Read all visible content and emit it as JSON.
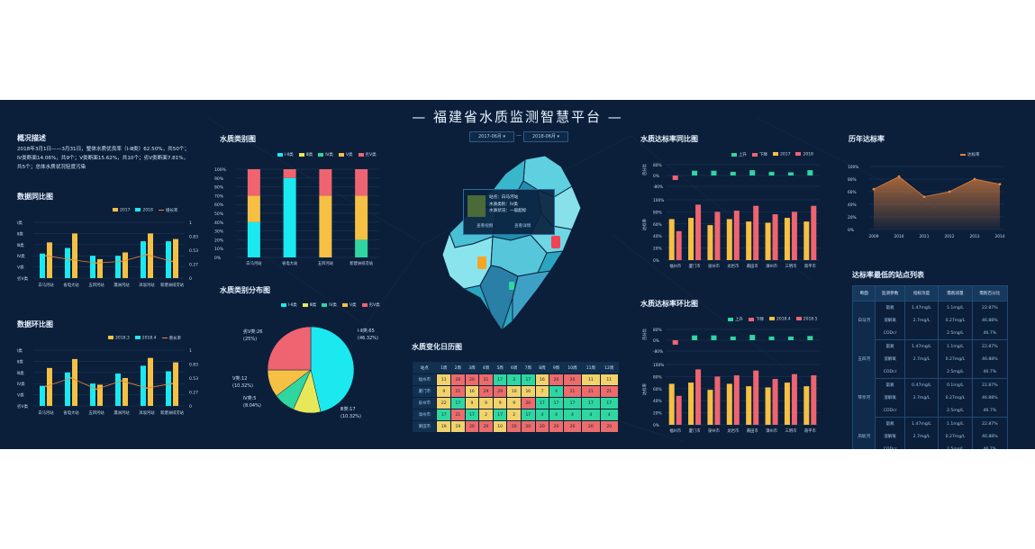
{
  "header": {
    "title": "— 福建省水质监测智慧平台 —"
  },
  "date_range": {
    "start": "2017-06月 ▾",
    "sep": "—",
    "end": "2018-06月 ▾"
  },
  "overview": {
    "title": "概况描述",
    "text": "2018年3月1日——3月31日，整体水质优良率（Ⅰ-Ⅲ类）62.50%，共50个；Ⅳ类断面14.06%，共9个；Ⅴ类断面15.62%，共10个；劣Ⅴ类断面7.81%，共5个；总体水质状况轻度污染"
  },
  "yoy": {
    "title": "数据同比图",
    "legend": [
      "2017",
      "2018",
      "增长率"
    ],
    "left_ticks": [
      "Ⅰ类",
      "Ⅱ类",
      "Ⅲ类",
      "Ⅳ类",
      "Ⅴ类",
      "劣Ⅴ类"
    ],
    "right_ticks": [
      "1",
      "0.83",
      "0.53",
      "0.27",
      "0"
    ],
    "stations": [
      "白马河站",
      "省电大站",
      "五四河站",
      "瀛洲河站",
      "凤坂河站",
      "新建洲排涝站"
    ]
  },
  "mom": {
    "title": "数据环比图",
    "legend": [
      "2018.3",
      "2018.4",
      "增长率"
    ],
    "left_ticks": [
      "Ⅰ类",
      "Ⅱ类",
      "Ⅲ类",
      "Ⅳ类",
      "Ⅴ类",
      "劣Ⅴ类"
    ],
    "right_ticks": [
      "1",
      "0.83",
      "0.53",
      "0.27",
      "0"
    ],
    "stations": [
      "白马河站",
      "省电大站",
      "五四河站",
      "瀛洲河站",
      "凤坂河站",
      "新建洲排涝站"
    ]
  },
  "category": {
    "title": "水质类别图",
    "legend": [
      "Ⅰ-Ⅱ类",
      "Ⅲ类",
      "Ⅳ类",
      "Ⅴ类",
      "劣Ⅴ类"
    ],
    "y_ticks": [
      "100%",
      "90%",
      "80%",
      "70%",
      "60%",
      "50%",
      "40%",
      "30%",
      "20%",
      "10%",
      "0%"
    ],
    "stations": [
      "白马河站",
      "省电大站",
      "五四河站",
      "新建洲排涝站"
    ]
  },
  "distribution": {
    "title": "水质类别分布图",
    "legend": [
      "Ⅰ-Ⅱ类",
      "Ⅲ类",
      "Ⅳ类",
      "Ⅴ类",
      "劣Ⅴ类"
    ],
    "labels": [
      {
        "name": "Ⅰ-Ⅱ类:65",
        "pct": "(46.32%)"
      },
      {
        "name": "Ⅲ类:17",
        "pct": "(10.32%)"
      },
      {
        "name": "Ⅳ类:5",
        "pct": "(8.04%)"
      },
      {
        "name": "Ⅴ类:12",
        "pct": "(10.32%)"
      },
      {
        "name": "劣Ⅴ类:26",
        "pct": "(25%)"
      }
    ]
  },
  "map_tooltip": {
    "lines": [
      "站点：白马河站",
      "水质类别：Ⅳ类",
      "水质状况：一般超标"
    ],
    "btn1": "查看视频",
    "btn2": "查看详情"
  },
  "calendar": {
    "title": "水质变化日历图",
    "header": [
      "站点",
      "1周",
      "2周",
      "3周",
      "4周",
      "5周",
      "6周",
      "7周",
      "8周",
      "9周",
      "10周",
      "11周",
      "12周"
    ],
    "rows": [
      {
        "city": "福州市",
        "cells": [
          "11",
          "20",
          "20",
          "21",
          "17",
          "3",
          "17",
          "16",
          "20",
          "20",
          "11",
          "11"
        ]
      },
      {
        "city": "厦门市",
        "cells": [
          "9",
          "21",
          "16",
          "29",
          "29",
          "10",
          "16",
          "7",
          "4",
          "21",
          "21",
          "21"
        ]
      },
      {
        "city": "泉州市",
        "cells": [
          "22",
          "17",
          "9",
          "9",
          "9",
          "9",
          "20",
          "17",
          "17",
          "17",
          "17",
          "17"
        ]
      },
      {
        "city": "漳州市",
        "cells": [
          "17",
          "21",
          "17",
          "2",
          "17",
          "2",
          "17",
          "4",
          "4",
          "4",
          "4",
          "4"
        ]
      },
      {
        "city": "莆田市",
        "cells": [
          "19",
          "19",
          "20",
          "20",
          "10",
          "20",
          "20",
          "20",
          "20",
          "20",
          "20",
          "20"
        ]
      }
    ],
    "colors": [
      "#f2d26b",
      "#ec6b6b",
      "#f2d26b",
      "#ec6b6b",
      "#f2d26b",
      "#2fd6a0",
      "#f2d26b",
      "#f2d26b",
      "#ec6b6b",
      "#ec6b6b",
      "#f2d26b",
      "#f2d26b"
    ]
  },
  "yoy_rate": {
    "title": "水质达标率同比图",
    "legend": [
      "上升",
      "下降",
      "2017",
      "2018"
    ],
    "top_axis": "百分比",
    "top_ticks": [
      "80%",
      "0%",
      "-80%"
    ],
    "bottom_axis": "达标率",
    "bottom_ticks": [
      "100%",
      "80%",
      "60%",
      "40%",
      "20%",
      "0%"
    ],
    "cities": [
      "福州市",
      "厦门市",
      "泉州市",
      "龙岩市",
      "莆田市",
      "漳州市",
      "三明市",
      "南平市"
    ]
  },
  "mom_rate": {
    "title": "水质达标率环比图",
    "legend": [
      "上升",
      "下降",
      "2018.4",
      "2018.5"
    ],
    "top_axis": "百分比",
    "top_ticks": [
      "80%",
      "0%",
      "-80%"
    ],
    "bottom_axis": "达标率",
    "bottom_ticks": [
      "100%",
      "80%",
      "60%",
      "40%",
      "20%",
      "0%"
    ],
    "cities": [
      "福州市",
      "厦门市",
      "泉州市",
      "龙岩市",
      "莆田市",
      "漳州市",
      "三明市",
      "南平市"
    ]
  },
  "history": {
    "title": "历年达标率",
    "legend": "达标率",
    "y_ticks": [
      "100%",
      "80%",
      "60%",
      "40%",
      "20%",
      "0%"
    ],
    "years": [
      "2009",
      "2010",
      "2011",
      "2012",
      "2013",
      "2014"
    ]
  },
  "lowest": {
    "title": "达标率最低的站点列表",
    "header": [
      "断面",
      "监测参数",
      "指标浓度",
      "需削减量",
      "需削百分比"
    ],
    "groups": [
      {
        "name": "白马河",
        "rows": [
          [
            "氨氮",
            "1.47mg/L",
            "1.1mg/L",
            "22.87%"
          ],
          [
            "溶解氧",
            "2.7mg/L",
            "0.27mg/L",
            "46.88%"
          ],
          [
            "CODcr",
            "",
            "2.5mg/L",
            "46.7%"
          ]
        ]
      },
      {
        "name": "五四河",
        "rows": [
          [
            "氨氮",
            "1.47mg/L",
            "1.1mg/L",
            "22.87%"
          ],
          [
            "溶解氧",
            "2.7mg/L",
            "0.27mg/L",
            "46.88%"
          ],
          [
            "CODcr",
            "",
            "2.5mg/L",
            "46.7%"
          ]
        ]
      },
      {
        "name": "琴亭河",
        "rows": [
          [
            "氨氮",
            "0.47mg/L",
            "0.1mg/L",
            "22.87%"
          ],
          [
            "溶解氧",
            "2.7mg/L",
            "0.27mg/L",
            "46.88%"
          ],
          [
            "CODcr",
            "",
            "2.5mg/L",
            "46.7%"
          ]
        ]
      },
      {
        "name": "凤坂河",
        "rows": [
          [
            "氨氮",
            "1.47mg/L",
            "1.1mg/L",
            "22.87%"
          ],
          [
            "溶解氧",
            "2.7mg/L",
            "0.27mg/L",
            "46.88%"
          ],
          [
            "CODcr",
            "",
            "2.5mg/L",
            "46.7%"
          ]
        ]
      }
    ]
  },
  "chart_data": [
    {
      "type": "bar",
      "title": "数据同比图",
      "categories": [
        "白马河站",
        "省电大站",
        "五四河站",
        "瀛洲河站",
        "凤坂河站",
        "新建洲排涝站"
      ],
      "series": [
        {
          "name": "2017",
          "values": [
            2.2,
            2.7,
            2.0,
            2.0,
            3.3,
            3.3
          ]
        },
        {
          "name": "2018",
          "values": [
            3.2,
            4.0,
            1.7,
            2.3,
            4.0,
            3.5
          ]
        },
        {
          "name": "增长率",
          "values": [
            0.4,
            0.33,
            0.27,
            0.3,
            0.42,
            0.3
          ]
        }
      ],
      "ylim": [
        0,
        5
      ]
    },
    {
      "type": "bar",
      "title": "数据环比图",
      "categories": [
        "白马河站",
        "省电大站",
        "五四河站",
        "瀛洲河站",
        "凤坂河站",
        "新建洲排涝站"
      ],
      "series": [
        {
          "name": "2018.3",
          "values": [
            1.8,
            3.0,
            2.0,
            2.9,
            3.6,
            3.1
          ]
        },
        {
          "name": "2018.4",
          "values": [
            3.4,
            4.2,
            1.9,
            2.5,
            4.3,
            3.9
          ]
        },
        {
          "name": "增长率",
          "values": [
            0.35,
            0.5,
            0.3,
            0.45,
            0.32,
            0.4
          ]
        }
      ],
      "ylim": [
        0,
        5
      ]
    },
    {
      "type": "bar",
      "title": "水质类别图",
      "categories": [
        "白马河站",
        "省电大站",
        "五四河站",
        "新建洲排涝站"
      ],
      "series": [
        {
          "name": "Ⅰ-Ⅱ类",
          "values": [
            40,
            90,
            0,
            0
          ]
        },
        {
          "name": "Ⅲ类",
          "values": [
            0,
            0,
            0,
            0
          ]
        },
        {
          "name": "Ⅳ类",
          "values": [
            0,
            0,
            0,
            20
          ]
        },
        {
          "name": "Ⅴ类",
          "values": [
            30,
            0,
            70,
            50
          ]
        },
        {
          "name": "劣Ⅴ类",
          "values": [
            30,
            10,
            30,
            30
          ]
        }
      ],
      "ylim": [
        0,
        100
      ]
    },
    {
      "type": "pie",
      "title": "水质类别分布图",
      "categories": [
        "Ⅰ-Ⅱ类",
        "Ⅲ类",
        "Ⅳ类",
        "Ⅴ类",
        "劣Ⅴ类"
      ],
      "values": [
        46.32,
        10.32,
        8.04,
        10.32,
        25
      ]
    },
    {
      "type": "bar",
      "title": "水质达标率同比图",
      "categories": [
        "福州市",
        "厦门市",
        "泉州市",
        "龙岩市",
        "莆田市",
        "漳州市",
        "三明市",
        "南平市"
      ],
      "series": [
        {
          "name": "2017",
          "values": [
            68,
            70,
            58,
            68,
            64,
            62,
            70,
            64
          ]
        },
        {
          "name": "2018",
          "values": [
            48,
            92,
            80,
            82,
            90,
            76,
            80,
            90
          ]
        }
      ],
      "ylim": [
        0,
        100
      ]
    },
    {
      "type": "bar",
      "title": "水质达标率环比图",
      "categories": [
        "福州市",
        "厦门市",
        "泉州市",
        "龙岩市",
        "莆田市",
        "漳州市",
        "三明市",
        "南平市"
      ],
      "series": [
        {
          "name": "2018.4",
          "values": [
            68,
            70,
            58,
            68,
            64,
            62,
            70,
            64
          ]
        },
        {
          "name": "2018.5",
          "values": [
            48,
            92,
            80,
            82,
            90,
            76,
            84,
            82
          ]
        }
      ],
      "ylim": [
        0,
        100
      ]
    },
    {
      "type": "area",
      "title": "历年达标率",
      "categories": [
        "2009",
        "2010",
        "2011",
        "2012",
        "2013",
        "2014"
      ],
      "values": [
        64,
        84,
        52,
        60,
        80,
        72
      ],
      "ylim": [
        0,
        100
      ]
    }
  ],
  "colors": {
    "cyan": "#1be9f0",
    "yellow": "#f5c044",
    "red": "#ef6471",
    "lime": "#e6e85a",
    "green": "#2fd6a0",
    "orange": "#e8843a",
    "bg": "#0b1f3a"
  }
}
